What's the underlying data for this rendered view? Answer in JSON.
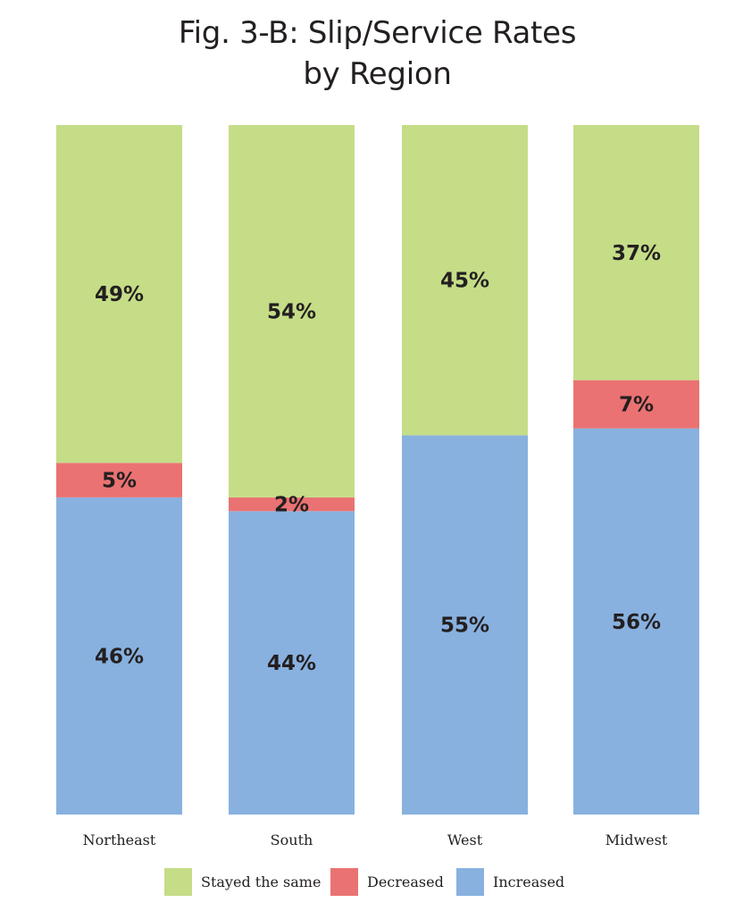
{
  "chart_data": {
    "type": "bar",
    "stacked": true,
    "title": "Fig. 3-B: Slip/Service Rates by Region",
    "title_lines": [
      "Fig. 3-B: Slip/Service Rates",
      "by Region"
    ],
    "categories": [
      "Northeast",
      "South",
      "West",
      "Midwest"
    ],
    "series": [
      {
        "name": "Increased",
        "values": [
          46,
          44,
          55,
          56
        ],
        "labels": [
          "46%",
          "44%",
          "55%",
          "56%"
        ],
        "color": "#88b1df"
      },
      {
        "name": "Decreased",
        "values": [
          5,
          2,
          0,
          7
        ],
        "labels": [
          "5%",
          "2%",
          "",
          "7%"
        ],
        "color": "#ea7272"
      },
      {
        "name": "Stayed the same",
        "values": [
          49,
          54,
          45,
          37
        ],
        "labels": [
          "49%",
          "54%",
          "45%",
          "37%"
        ],
        "color": "#c5dd87"
      }
    ],
    "legend_order": [
      "Stayed the same",
      "Decreased",
      "Increased"
    ],
    "legend_position": "bottom",
    "ylim": [
      0,
      100
    ],
    "grid": false
  }
}
